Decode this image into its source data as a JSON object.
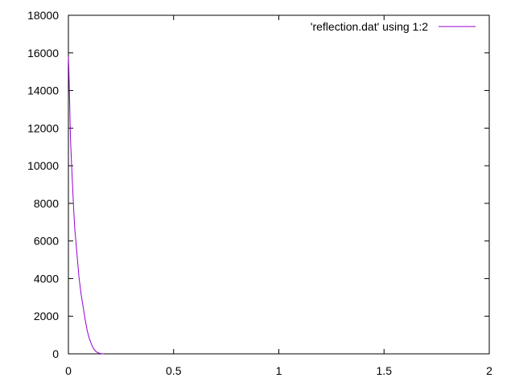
{
  "chart_data": {
    "type": "line",
    "x_range": [
      0,
      2
    ],
    "y_range": [
      0,
      18000
    ],
    "x_ticks": [
      0,
      0.5,
      1,
      1.5,
      2
    ],
    "x_tick_labels": [
      "0",
      "0.5",
      "1",
      "1.5",
      "2"
    ],
    "y_ticks": [
      0,
      2000,
      4000,
      6000,
      8000,
      10000,
      12000,
      14000,
      16000,
      18000
    ],
    "y_tick_labels": [
      "0",
      "2000",
      "4000",
      "6000",
      "8000",
      "10000",
      "12000",
      "14000",
      "16000",
      "18000"
    ],
    "grid": false,
    "legend_position": "top-right",
    "series": [
      {
        "name": "'reflection.dat' using 1:2",
        "color": "#9400d3",
        "x": [
          0,
          0.002,
          0.004,
          0.006,
          0.008,
          0.01,
          0.015,
          0.02,
          0.025,
          0.03,
          0.04,
          0.05,
          0.06,
          0.07,
          0.08,
          0.09,
          0.1,
          0.11,
          0.12,
          0.13,
          0.14,
          0.15,
          0.16,
          0.17
        ],
        "y": [
          15800,
          15200,
          14300,
          13400,
          12300,
          11400,
          10100,
          8900,
          7700,
          6700,
          5400,
          4100,
          3200,
          2500,
          1800,
          1200,
          800,
          500,
          270,
          130,
          60,
          20,
          6,
          0
        ]
      }
    ]
  }
}
